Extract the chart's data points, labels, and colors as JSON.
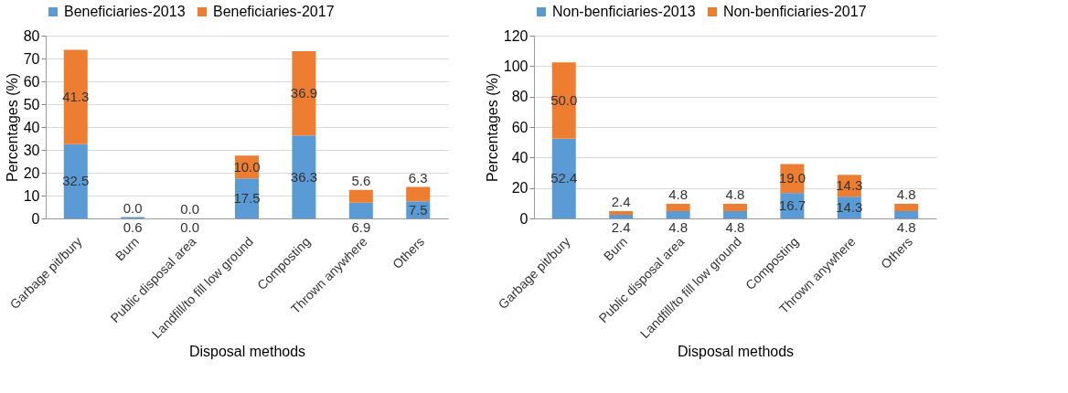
{
  "chart_data": [
    {
      "type": "bar",
      "stacked": true,
      "xlabel": "Disposal methods",
      "ylabel": "Percentages (%)",
      "categories": [
        "Garbage pit/bury",
        "Burn",
        "Public disposal area",
        "Landfill/to fill low ground",
        "Composting",
        "Thrown anywhere",
        "Others"
      ],
      "ylim": [
        0,
        80
      ],
      "yticks": [
        0,
        10,
        20,
        30,
        40,
        50,
        60,
        70,
        80
      ],
      "grid": "y",
      "legend": "top",
      "series": [
        {
          "name": "Beneficiaries-2013",
          "color": "#5b9bd5",
          "values": [
            32.5,
            0.6,
            0.0,
            17.5,
            36.3,
            6.9,
            7.5
          ],
          "value_labels": [
            "32.5",
            "0.6",
            "0.0",
            "17.5",
            "36.3",
            "6.9",
            "7.5"
          ]
        },
        {
          "name": "Beneficiaries-2017",
          "color": "#ed7d31",
          "values": [
            41.3,
            0.0,
            0.0,
            10.0,
            36.9,
            5.6,
            6.3
          ],
          "value_labels": [
            "41.3",
            "0.0",
            "0.0",
            "10.0",
            "36.9",
            "5.6",
            "6.3"
          ]
        }
      ]
    },
    {
      "type": "bar",
      "stacked": true,
      "xlabel": "Disposal methods",
      "ylabel": "Percentages (%)",
      "categories": [
        "Garbage pit/bury",
        "Burn",
        "Public disposal area",
        "Landfill/to fill low ground",
        "Composting",
        "Thrown anywhere",
        "Others"
      ],
      "ylim": [
        0,
        120
      ],
      "yticks": [
        0,
        20,
        40,
        60,
        80,
        100,
        120
      ],
      "grid": "y",
      "legend": "top",
      "series": [
        {
          "name": "Non-benficiaries-2013",
          "color": "#5b9bd5",
          "values": [
            52.4,
            2.4,
            4.8,
            4.8,
            16.7,
            14.3,
            4.8
          ],
          "value_labels": [
            "52.4",
            "2.4",
            "4.8",
            "4.8",
            "16.7",
            "14.3",
            "4.8"
          ]
        },
        {
          "name": "Non-benficiaries-2017",
          "color": "#ed7d31",
          "values": [
            50.0,
            2.4,
            4.8,
            4.8,
            19.0,
            14.3,
            4.8
          ],
          "value_labels": [
            "50.0",
            "2.4",
            "4.8",
            "4.8",
            "19.0",
            "14.3",
            "4.8"
          ]
        }
      ]
    }
  ]
}
